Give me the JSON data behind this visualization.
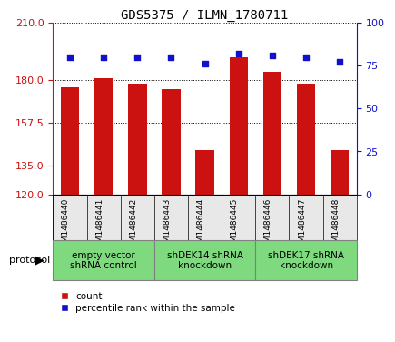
{
  "title": "GDS5375 / ILMN_1780711",
  "samples": [
    "GSM1486440",
    "GSM1486441",
    "GSM1486442",
    "GSM1486443",
    "GSM1486444",
    "GSM1486445",
    "GSM1486446",
    "GSM1486447",
    "GSM1486448"
  ],
  "counts": [
    176,
    181,
    178,
    175,
    143,
    192,
    184,
    178,
    143
  ],
  "percentiles": [
    80,
    80,
    80,
    80,
    76,
    82,
    81,
    80,
    77
  ],
  "ylim_left": [
    120,
    210
  ],
  "ylim_right": [
    0,
    100
  ],
  "yticks_left": [
    120,
    135,
    157.5,
    180,
    210
  ],
  "yticks_right": [
    0,
    25,
    50,
    75,
    100
  ],
  "bar_color": "#cc1111",
  "dot_color": "#1111cc",
  "grid_color": "#000000",
  "bg_color": "#ffffff",
  "protocol_groups": [
    {
      "label": "empty vector\nshRNA control",
      "start": 0,
      "end": 3
    },
    {
      "label": "shDEK14 shRNA\nknockdown",
      "start": 3,
      "end": 6
    },
    {
      "label": "shDEK17 shRNA\nknockdown",
      "start": 6,
      "end": 9
    }
  ],
  "protocol_group_color": "#7FD97F",
  "sample_box_color": "#d0d0d0",
  "title_fontsize": 10,
  "tick_fontsize": 8,
  "sample_fontsize": 6.5,
  "proto_fontsize": 7.5,
  "legend_count_label": "count",
  "legend_pct_label": "percentile rank within the sample"
}
